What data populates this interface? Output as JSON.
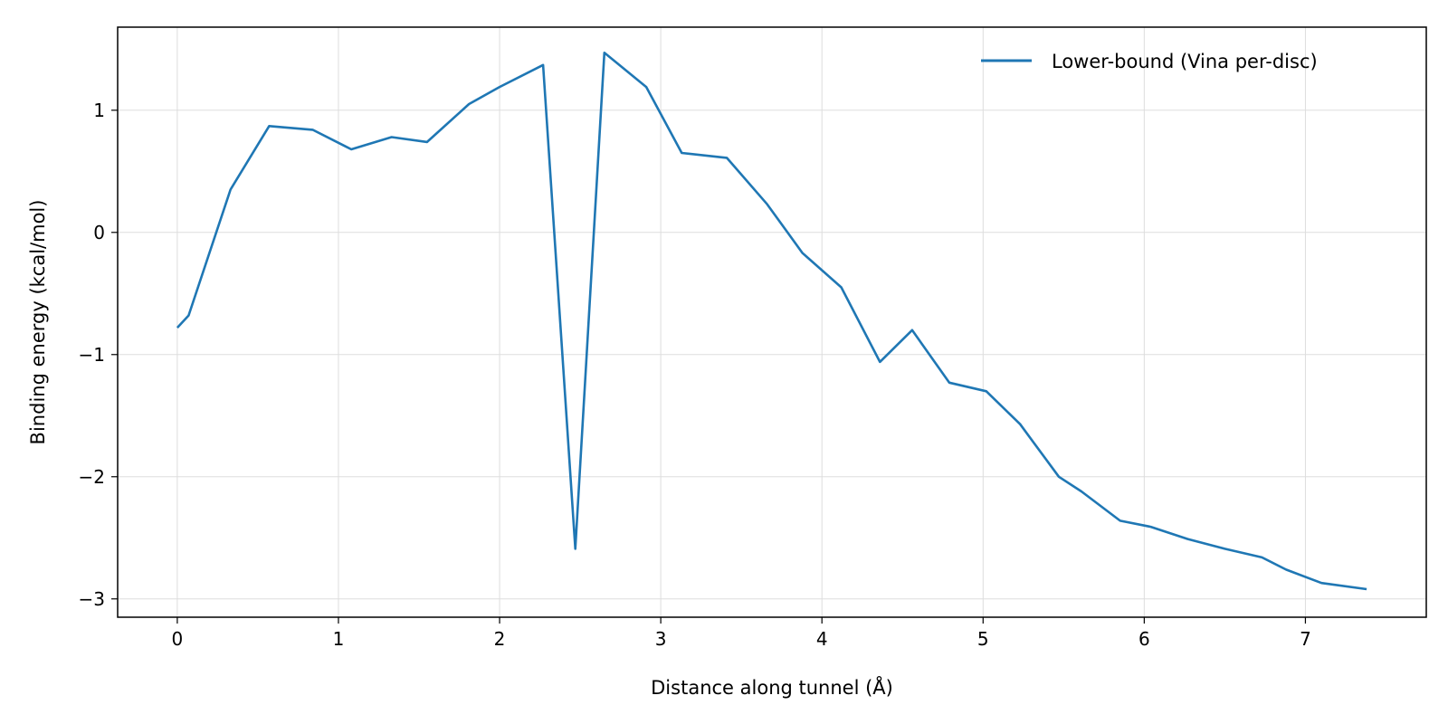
{
  "chart_data": {
    "type": "line",
    "title": "",
    "xlabel": "Distance along tunnel (Å)",
    "ylabel": "Binding energy (kcal/mol)",
    "xlim": [
      -0.37,
      7.75
    ],
    "ylim": [
      -3.15,
      1.68
    ],
    "xticks": [
      0,
      1,
      2,
      3,
      4,
      5,
      6,
      7
    ],
    "yticks": [
      -3,
      -2,
      -1,
      0,
      1
    ],
    "xtick_labels": [
      "0",
      "1",
      "2",
      "3",
      "4",
      "5",
      "6",
      "7"
    ],
    "ytick_labels": [
      "−3",
      "−2",
      "−1",
      "0",
      "1"
    ],
    "grid": true,
    "legend_position": "top-right",
    "series": [
      {
        "name": "Lower-bound (Vina per-disc)",
        "color": "#1f77b4",
        "x": [
          0.0,
          0.07,
          0.33,
          0.57,
          0.84,
          1.08,
          1.33,
          1.55,
          1.81,
          2.0,
          2.27,
          2.47,
          2.65,
          2.91,
          3.13,
          3.41,
          3.66,
          3.88,
          4.12,
          4.36,
          4.56,
          4.79,
          5.02,
          5.23,
          5.47,
          5.61,
          5.85,
          6.04,
          6.27,
          6.5,
          6.73,
          6.88,
          7.1,
          7.38
        ],
        "y": [
          -0.78,
          -0.68,
          0.35,
          0.87,
          0.84,
          0.68,
          0.78,
          0.74,
          1.05,
          1.19,
          1.37,
          -2.59,
          1.47,
          1.19,
          0.65,
          0.61,
          0.23,
          -0.17,
          -0.45,
          -1.06,
          -0.8,
          -1.23,
          -1.3,
          -1.57,
          -2.0,
          -2.12,
          -2.36,
          -2.41,
          -2.51,
          -2.59,
          -2.66,
          -2.76,
          -2.87,
          -2.92
        ]
      }
    ]
  }
}
